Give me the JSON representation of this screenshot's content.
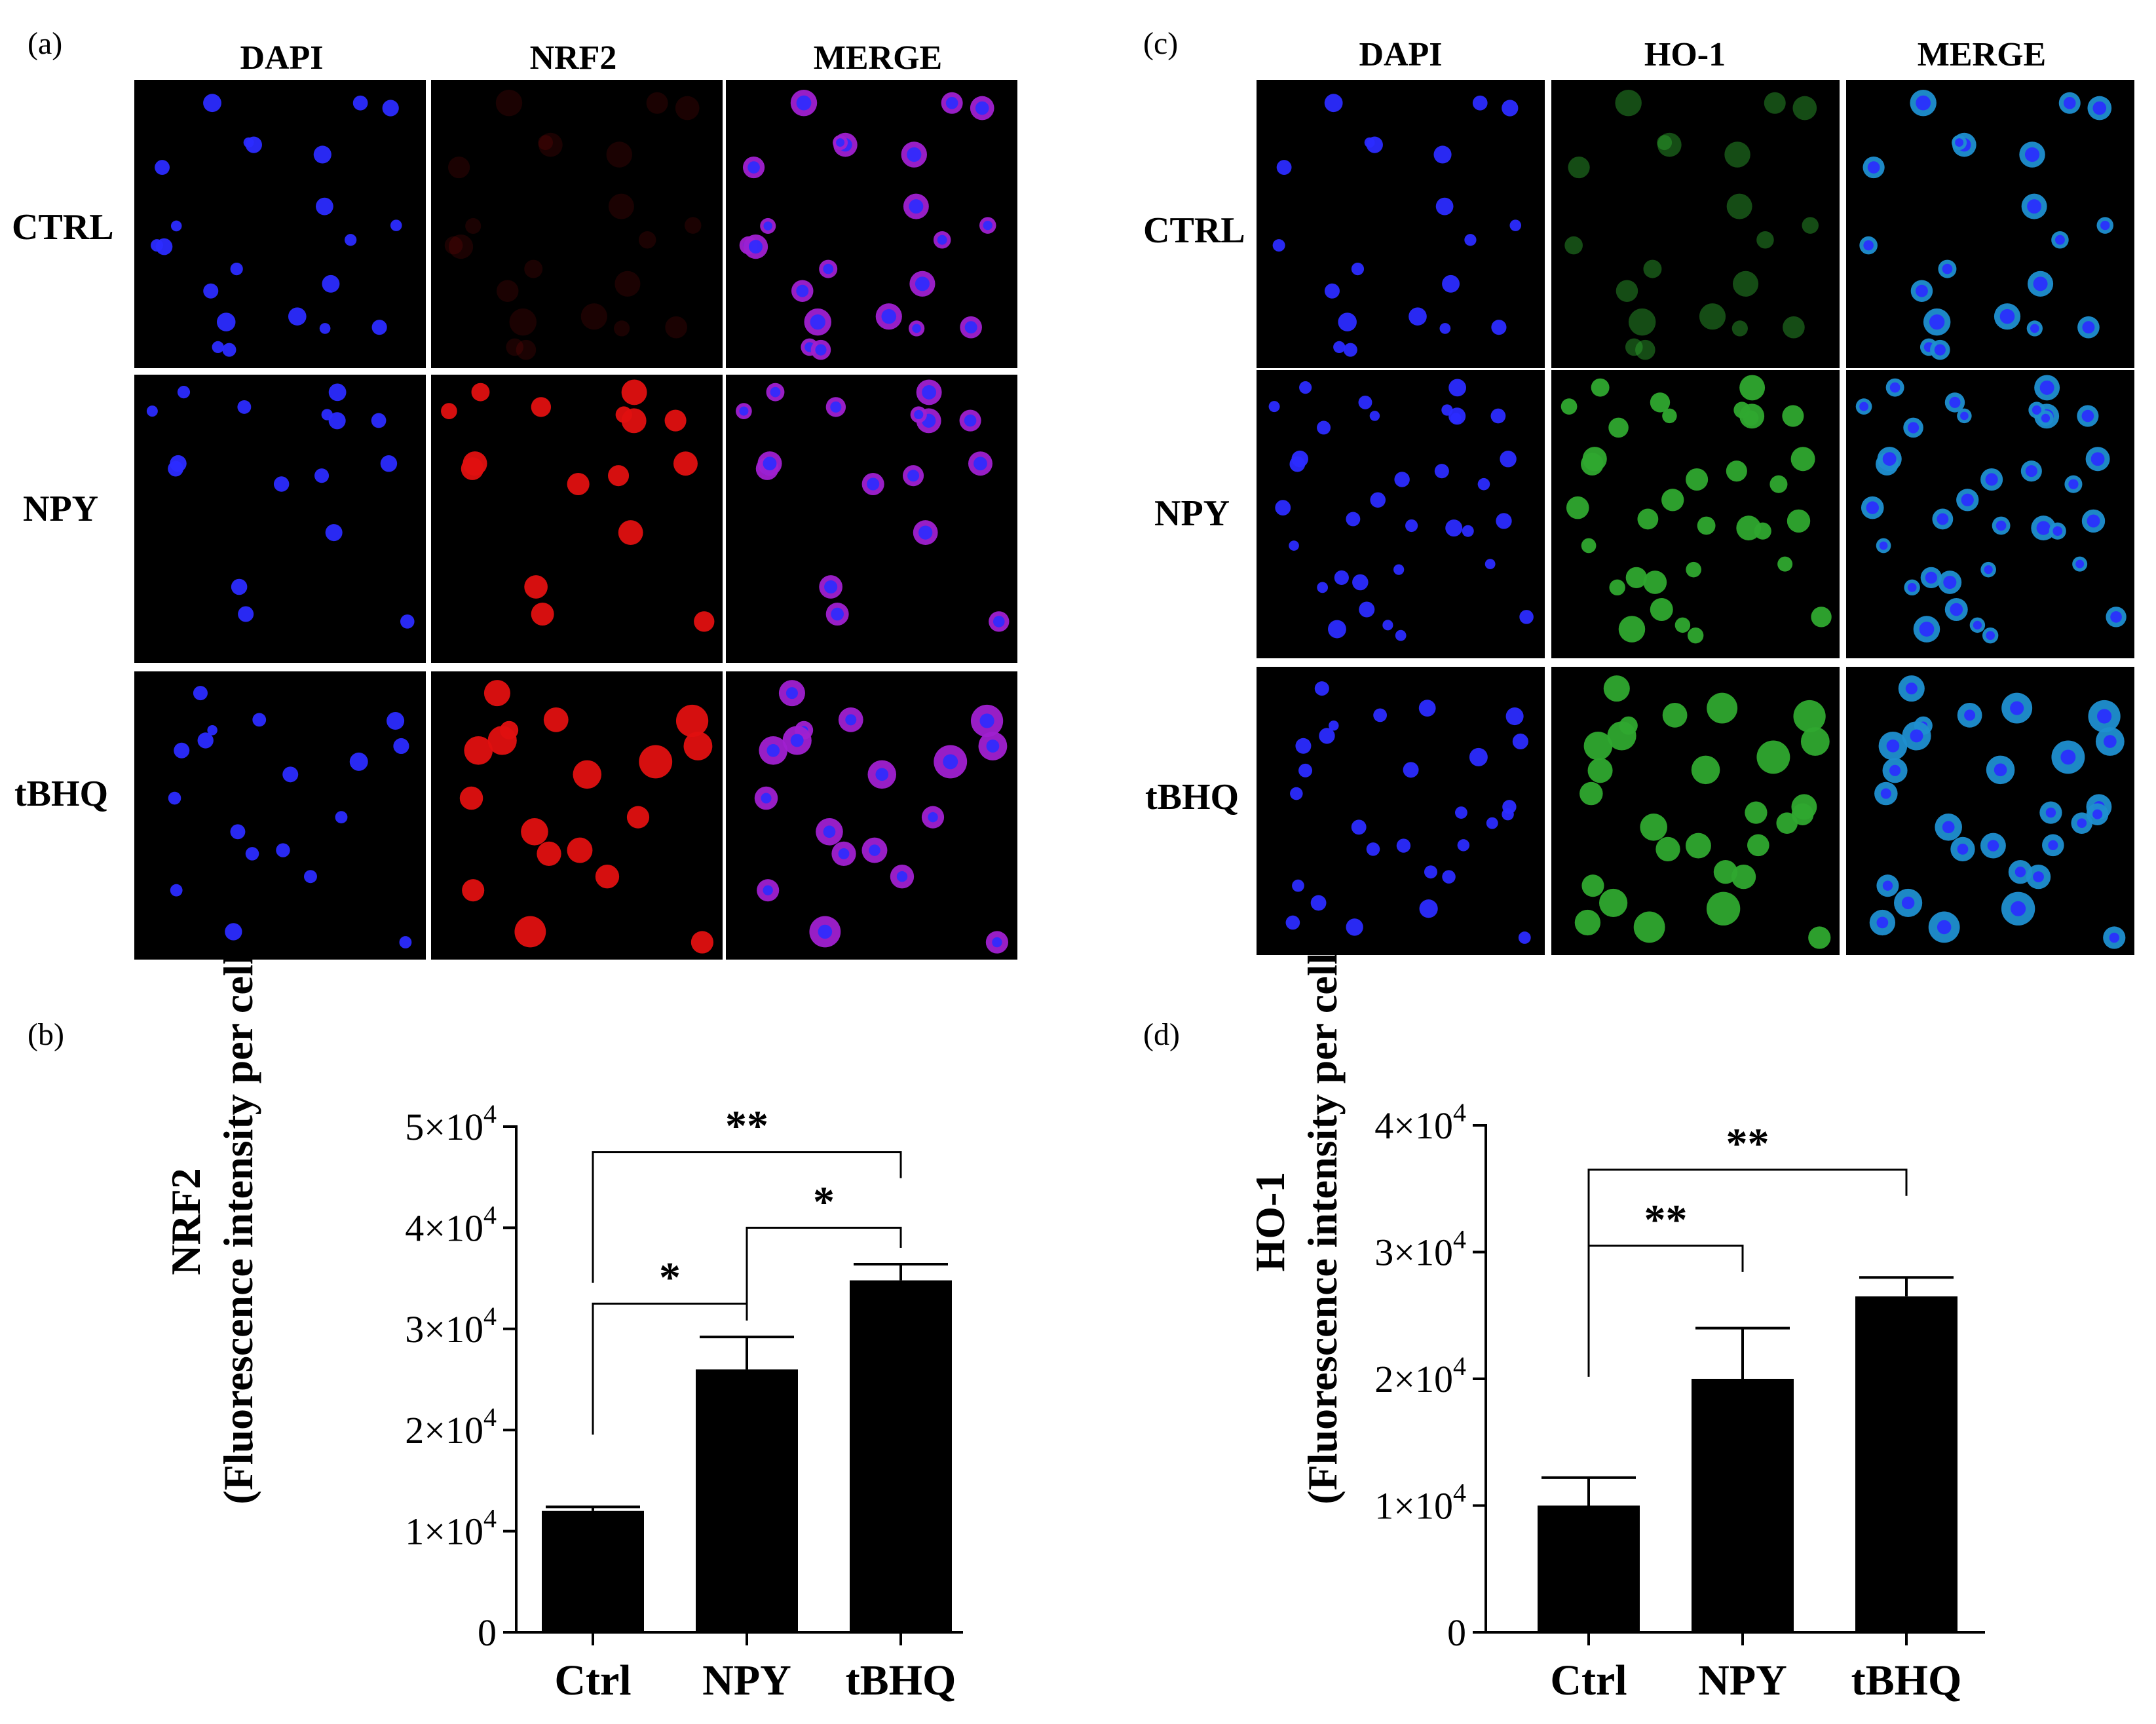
{
  "panels": {
    "a": {
      "label": "(a)",
      "columns": [
        "DAPI",
        "NRF2",
        "MERGE"
      ],
      "rows": [
        "CTRL",
        "NPY",
        "tBHQ"
      ],
      "colors": {
        "DAPI": "#2b2bff",
        "NRF2": "#e01010",
        "MERGE": "#a020d0"
      },
      "cell_counts": {
        "CTRL": 22,
        "NPY": 16,
        "tBHQ": 18
      }
    },
    "c": {
      "label": "(c)",
      "columns": [
        "DAPI",
        "HO-1",
        "MERGE"
      ],
      "rows": [
        "CTRL",
        "NPY",
        "tBHQ"
      ],
      "colors": {
        "DAPI": "#2b2bff",
        "HO-1": "#2fa82f",
        "MERGE": "#1f8fd0"
      },
      "cell_counts": {
        "CTRL": 20,
        "NPY": 34,
        "tBHQ": 28
      }
    }
  },
  "chart_data": [
    {
      "panel_label": "(b)",
      "type": "bar",
      "title": "",
      "ylabel_line1": "NRF2",
      "ylabel_line2": "(Fluorescence intensity per cell)",
      "xlabel": "",
      "categories": [
        "Ctrl",
        "NPY",
        "tBHQ"
      ],
      "values": [
        12000,
        26000,
        34800
      ],
      "errors": [
        400,
        3200,
        1600
      ],
      "ylim": [
        0,
        50000
      ],
      "yticks": [
        {
          "value": 0,
          "label": "0"
        },
        {
          "value": 10000,
          "label": "1×10",
          "exp": "4"
        },
        {
          "value": 20000,
          "label": "2×10",
          "exp": "4"
        },
        {
          "value": 30000,
          "label": "3×10",
          "exp": "4"
        },
        {
          "value": 40000,
          "label": "4×10",
          "exp": "4"
        },
        {
          "value": 50000,
          "label": "5×10",
          "exp": "4"
        }
      ],
      "bar_color": "#000000",
      "significance": [
        {
          "from": 0,
          "to": 2,
          "level": 47500,
          "label": "**"
        },
        {
          "from": 1,
          "to": 2,
          "level": 40000,
          "label": "*"
        },
        {
          "from": 0,
          "to": 1,
          "level": 32500,
          "label": "*"
        }
      ]
    },
    {
      "panel_label": "(d)",
      "type": "bar",
      "title": "",
      "ylabel_line1": "HO-1",
      "ylabel_line2": "(Fluorescence intensity per cell)",
      "xlabel": "",
      "categories": [
        "Ctrl",
        "NPY",
        "tBHQ"
      ],
      "values": [
        10000,
        20000,
        26500
      ],
      "errors": [
        2200,
        4000,
        1500
      ],
      "ylim": [
        0,
        40000
      ],
      "yticks": [
        {
          "value": 0,
          "label": "0"
        },
        {
          "value": 10000,
          "label": "1×10",
          "exp": "4"
        },
        {
          "value": 20000,
          "label": "2×10",
          "exp": "4"
        },
        {
          "value": 30000,
          "label": "3×10",
          "exp": "4"
        },
        {
          "value": 40000,
          "label": "4×10",
          "exp": "4"
        }
      ],
      "bar_color": "#000000",
      "significance": [
        {
          "from": 0,
          "to": 2,
          "level": 36500,
          "label": "**"
        },
        {
          "from": 0,
          "to": 1,
          "level": 30500,
          "label": "**"
        }
      ]
    }
  ]
}
